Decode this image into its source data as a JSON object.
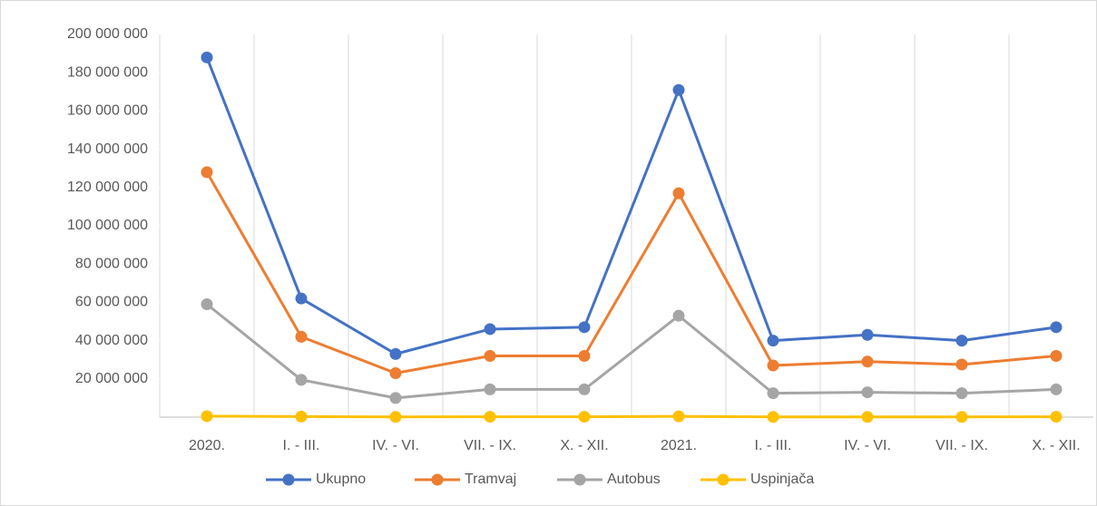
{
  "chart_data": {
    "type": "line",
    "categories": [
      "2020.",
      "I. - III.",
      "IV.  - VI.",
      "VII. - IX.",
      "X.  - XII.",
      "2021.",
      "I. - III.",
      "IV.  - VI.",
      "VII. - IX.",
      "X.  - XII."
    ],
    "series": [
      {
        "name": "Ukupno",
        "color": "#4472c4",
        "values": [
          188000000,
          62000000,
          33000000,
          46000000,
          47000000,
          171000000,
          40000000,
          43000000,
          40000000,
          47000000
        ]
      },
      {
        "name": "Tramvaj",
        "color": "#ed7d31",
        "values": [
          128000000,
          42000000,
          23000000,
          32000000,
          32000000,
          117000000,
          27000000,
          29000000,
          27500000,
          32000000
        ]
      },
      {
        "name": "Autobus",
        "color": "#a5a5a5",
        "values": [
          59000000,
          19500000,
          10000000,
          14500000,
          14500000,
          53000000,
          12500000,
          13000000,
          12500000,
          14500000
        ]
      },
      {
        "name": "Uspinjača",
        "color": "#ffc000",
        "values": [
          500000,
          300000,
          100000,
          200000,
          200000,
          400000,
          100000,
          100000,
          100000,
          200000
        ]
      }
    ],
    "ylim": [
      0,
      200000000
    ],
    "yticks": [
      {
        "value": 20000000,
        "label": "20 000 000"
      },
      {
        "value": 40000000,
        "label": "40 000 000"
      },
      {
        "value": 60000000,
        "label": "60 000 000"
      },
      {
        "value": 80000000,
        "label": "80 000 000"
      },
      {
        "value": 100000000,
        "label": "100 000 000"
      },
      {
        "value": 120000000,
        "label": "120 000 000"
      },
      {
        "value": 140000000,
        "label": "140 000 000"
      },
      {
        "value": 160000000,
        "label": "160 000 000"
      },
      {
        "value": 180000000,
        "label": "180 000 000"
      },
      {
        "value": 200000000,
        "label": "200 000 000"
      }
    ],
    "legend": "bottom"
  }
}
